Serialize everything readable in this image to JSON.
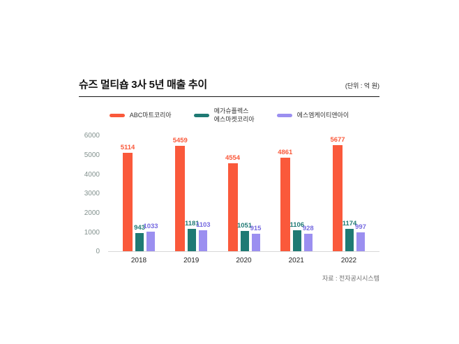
{
  "header": {
    "title": "슈즈 멀티숍 3사 5년 매출 추이",
    "unit": "(단위 : 억 원)"
  },
  "footer": {
    "source": "자료 : 전자공시시스템"
  },
  "colors": {
    "orange": "#fa593b",
    "teal": "#1f7a74",
    "purple": "#9b8ff0",
    "purple_label": "#7468e0",
    "axis_text": "#82918e",
    "baseline": "#d8d8d8"
  },
  "chart_data": {
    "type": "bar",
    "title": "슈즈 멀티숍 3사 5년 매출 추이",
    "unit_label": "(단위 : 억 원)",
    "source": "자료 : 전자공시시스템",
    "categories": [
      "2018",
      "2019",
      "2020",
      "2021",
      "2022"
    ],
    "series": [
      {
        "name": "ABC마트코리아",
        "legend_label": "ABC마트코리아",
        "color": "#fa593b",
        "label_color": "#fa593b",
        "values": [
          5114,
          5459,
          4554,
          4861,
          5677
        ]
      },
      {
        "name": "메가슈플렉스 에스마켓코리아",
        "legend_label": "메가슈플렉스\n에스마켓코리아",
        "color": "#1f7a74",
        "label_color": "#1f7a74",
        "values": [
          943,
          1181,
          1051,
          1106,
          1174
        ]
      },
      {
        "name": "에스엠케이티앤아이",
        "legend_label": "에스엠케이티앤아이",
        "color": "#9b8ff0",
        "label_color": "#7468e0",
        "values": [
          1033,
          1103,
          915,
          928,
          997
        ]
      }
    ],
    "ylim": [
      0,
      6000
    ],
    "yticks": [
      0,
      1000,
      2000,
      3000,
      4000,
      5000,
      6000
    ],
    "grid": false,
    "legend_position": "top"
  }
}
